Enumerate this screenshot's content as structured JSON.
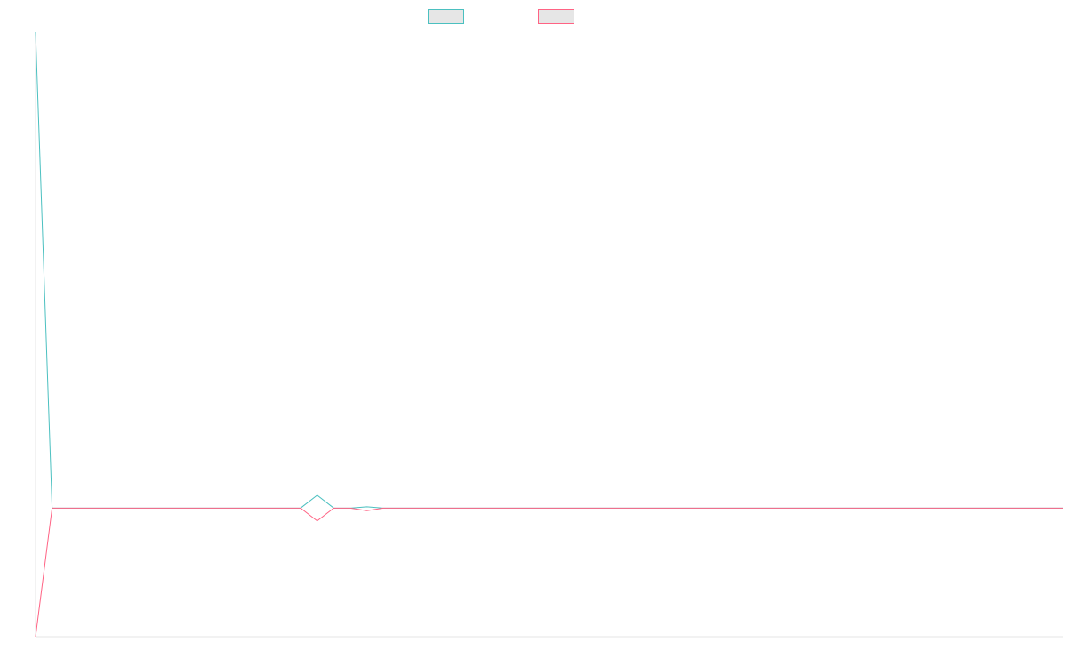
{
  "colors": {
    "series_1": "#4bc0c0",
    "series_2": "#ff6384",
    "legend_fill": "#e6e6e6",
    "axis": "#e5e5e5",
    "background": "#ffffff"
  },
  "chart_data": {
    "type": "line",
    "title": "",
    "xlabel": "",
    "ylabel": "",
    "legend_position": "top",
    "grid": false,
    "x_count": 63,
    "ylim": [
      -1,
      3.7
    ],
    "series": [
      {
        "color": "#4bc0c0",
        "values": [
          3.7,
          0,
          0,
          0,
          0,
          0,
          0,
          0,
          0,
          0,
          0,
          0,
          0,
          0,
          0,
          0,
          0,
          0.1,
          0,
          0,
          0.01,
          0,
          0,
          0,
          0,
          0,
          0,
          0,
          0,
          0,
          0,
          0,
          0,
          0,
          0,
          0,
          0,
          0,
          0,
          0,
          0,
          0,
          0,
          0,
          0,
          0,
          0,
          0,
          0,
          0,
          0,
          0,
          0,
          0,
          0,
          0,
          0,
          0,
          0,
          0,
          0,
          0,
          0
        ]
      },
      {
        "color": "#ff6384",
        "values": [
          -1,
          0,
          0,
          0,
          0,
          0,
          0,
          0,
          0,
          0,
          0,
          0,
          0,
          0,
          0,
          0,
          0,
          -0.1,
          0,
          0,
          -0.02,
          0,
          0,
          0,
          0,
          0,
          0,
          0,
          0,
          0,
          0,
          0,
          0,
          0,
          0,
          0,
          0,
          0,
          0,
          0,
          0,
          0,
          0,
          0,
          0,
          0,
          0,
          0,
          0,
          0,
          0,
          0,
          0,
          0,
          0,
          0,
          0,
          0,
          0,
          0,
          0,
          0,
          0
        ]
      }
    ]
  }
}
